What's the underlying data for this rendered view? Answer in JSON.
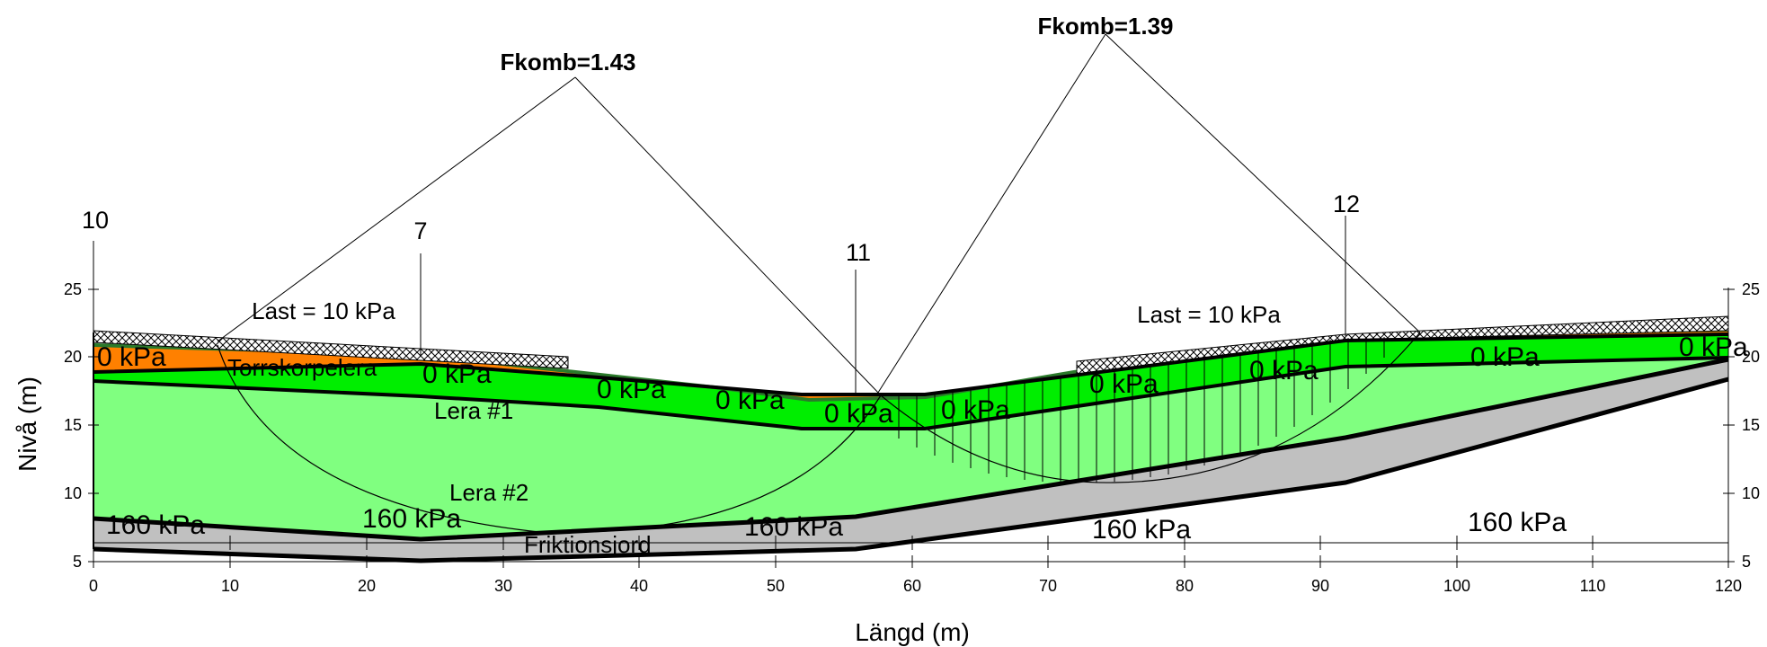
{
  "diagram": {
    "x_label": "Längd (m)",
    "y_label": "Nivå (m)",
    "x_ticks": [
      "0",
      "10",
      "20",
      "30",
      "40",
      "50",
      "60",
      "70",
      "80",
      "90",
      "100",
      "110",
      "120"
    ],
    "y_ticks_left": [
      "5",
      "10",
      "15",
      "20",
      "25"
    ],
    "y_ticks_right": [
      "5",
      "10",
      "15",
      "20",
      "25"
    ],
    "section_labels": [
      "10",
      "7",
      "11",
      "12"
    ],
    "safety_factors": [
      "Fkomb=1.43",
      "Fkomb=1.39"
    ],
    "loads": [
      "Last = 10 kPa",
      "Last = 10 kPa"
    ],
    "layers": [
      "Torrskorpelera",
      "Lera #1",
      "Lera #2",
      "Friktionsjord"
    ],
    "pressures_top": [
      "0 kPa",
      "0 kPa",
      "0 kPa",
      "0 kPa",
      "0 kPa",
      "0 kPa",
      "0 kPa",
      "0 kPa",
      "0 kPa",
      "0 kPa",
      "0 kPa"
    ],
    "pressures_bottom": [
      "160 kPa",
      "160 kPa",
      "160 kPa",
      "160 kPa",
      "160 kPa"
    ],
    "colors": {
      "torrskorpa": "#ff8000",
      "lera1": "#00ee00",
      "lera2": "#80ff80",
      "friktion": "#c0c0c0"
    }
  }
}
